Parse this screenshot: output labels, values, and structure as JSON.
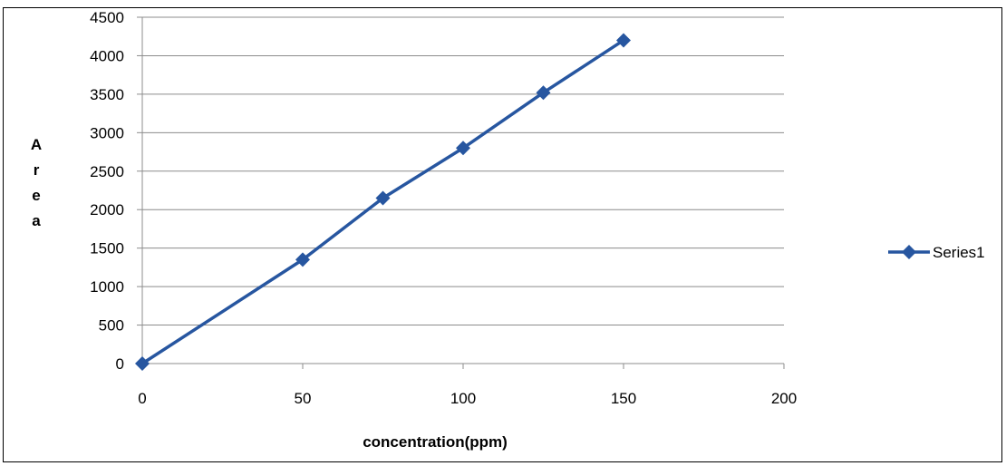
{
  "chart_data": {
    "type": "line",
    "title": "",
    "xlabel": "concentration(ppm)",
    "ylabel": "Area",
    "xlim": [
      0,
      200
    ],
    "ylim": [
      0,
      4500
    ],
    "x_ticks": [
      0,
      50,
      100,
      150,
      200
    ],
    "y_ticks": [
      0,
      500,
      1000,
      1500,
      2000,
      2500,
      3000,
      3500,
      4000,
      4500
    ],
    "grid": "horizontal",
    "legend_position": "right",
    "series": [
      {
        "name": "Series1",
        "color": "#2756A0",
        "marker": "diamond",
        "x": [
          0,
          50,
          75,
          100,
          125,
          150
        ],
        "y": [
          0,
          1350,
          2150,
          2800,
          3520,
          4200
        ]
      }
    ]
  }
}
